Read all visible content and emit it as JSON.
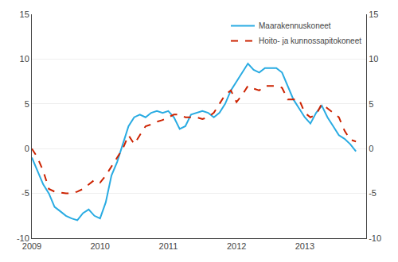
{
  "chart_data": {
    "type": "line",
    "x": [
      2009.0,
      2009.083,
      2009.167,
      2009.25,
      2009.333,
      2009.417,
      2009.5,
      2009.583,
      2009.667,
      2009.75,
      2009.833,
      2009.917,
      2010.0,
      2010.083,
      2010.167,
      2010.25,
      2010.333,
      2010.417,
      2010.5,
      2010.583,
      2010.667,
      2010.75,
      2010.833,
      2010.917,
      2011.0,
      2011.083,
      2011.167,
      2011.25,
      2011.333,
      2011.417,
      2011.5,
      2011.583,
      2011.667,
      2011.75,
      2011.833,
      2011.917,
      2012.0,
      2012.083,
      2012.167,
      2012.25,
      2012.333,
      2012.417,
      2012.5,
      2012.583,
      2012.667,
      2012.75,
      2012.833,
      2012.917,
      2013.0,
      2013.083,
      2013.167,
      2013.25,
      2013.333,
      2013.417,
      2013.5,
      2013.583,
      2013.667,
      2013.75
    ],
    "series": [
      {
        "name": "Maarakennuskoneet",
        "color": "#29ABE2",
        "line_style": "solid",
        "values": [
          -1.0,
          -2.5,
          -4.0,
          -5.0,
          -6.5,
          -7.0,
          -7.5,
          -7.8,
          -8.0,
          -7.2,
          -6.8,
          -7.5,
          -7.8,
          -6.0,
          -3.0,
          -1.5,
          0.5,
          2.5,
          3.5,
          3.8,
          3.5,
          4.0,
          4.2,
          4.0,
          4.2,
          3.5,
          2.2,
          2.5,
          3.8,
          4.0,
          4.2,
          4.0,
          3.5,
          4.0,
          5.0,
          6.5,
          7.5,
          8.5,
          9.5,
          8.8,
          8.5,
          9.0,
          9.0,
          9.0,
          8.5,
          7.0,
          5.5,
          4.5,
          3.5,
          2.8,
          4.0,
          4.8,
          3.5,
          2.5,
          1.5,
          1.1,
          0.5,
          -0.3
        ]
      },
      {
        "name": "Hoito- ja kunnossapitokoneet",
        "color": "#CC2200",
        "line_style": "dashed",
        "values": [
          0.0,
          -1.0,
          -2.5,
          -4.5,
          -4.8,
          -4.9,
          -5.0,
          -5.0,
          -4.8,
          -4.5,
          -4.0,
          -3.5,
          -3.8,
          -3.0,
          -2.0,
          -1.0,
          0.0,
          1.5,
          0.5,
          1.5,
          2.5,
          2.7,
          3.0,
          3.2,
          3.5,
          3.8,
          3.8,
          3.5,
          3.5,
          3.5,
          3.3,
          3.5,
          4.0,
          5.0,
          6.0,
          6.5,
          5.2,
          6.0,
          7.0,
          6.7,
          6.5,
          7.0,
          7.0,
          7.0,
          6.8,
          5.5,
          5.5,
          5.5,
          4.0,
          3.5,
          3.8,
          5.0,
          4.5,
          4.0,
          3.5,
          2.0,
          1.0,
          0.8
        ]
      }
    ],
    "xlim": [
      2009.0,
      2013.9
    ],
    "xticks": [
      2009,
      2010,
      2011,
      2012,
      2013
    ],
    "ylim": [
      -10,
      15
    ],
    "yticks": [
      -10,
      -5,
      0,
      5,
      10,
      15
    ],
    "y2lim": [
      -10,
      15
    ],
    "y2ticks": [
      -10,
      -5,
      0,
      5,
      10,
      15
    ],
    "grid": "y",
    "legend": "upper right"
  }
}
